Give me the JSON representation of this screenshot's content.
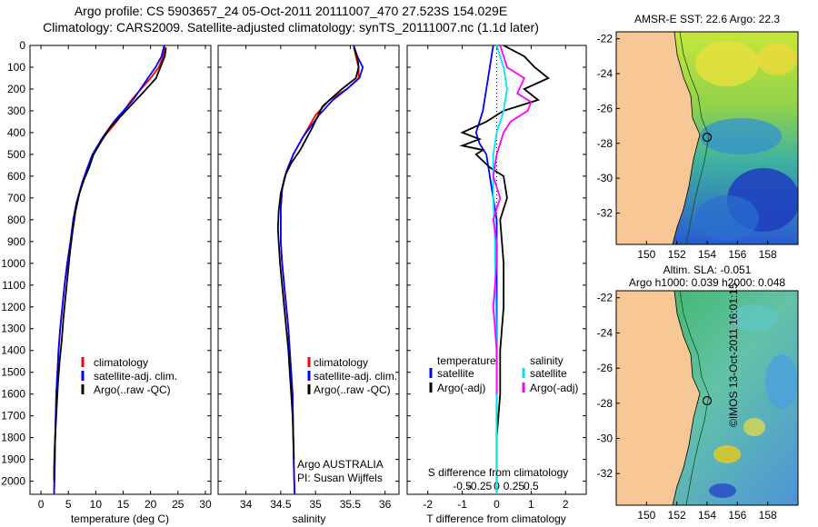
{
  "header": {
    "line1": "Argo profile: CS 5903657_24 05-Oct-2011 20111007_470 27.523S 154.029E",
    "line2": "Climatology: CARS2009. Satellite-adjusted climatology: synTS_20111007.nc (1.1d later)"
  },
  "colors": {
    "climatology": "#ff0000",
    "satellite": "#0000ff",
    "argo": "#000000",
    "temperature_diff_satellite": "#0000ff",
    "temperature_diff_argo": "#000000",
    "salinity_diff_satellite": "#00e5ee",
    "salinity_diff_argo": "#ff00ff",
    "land": "#f7c896"
  },
  "chart_data": [
    {
      "id": "temperature",
      "type": "line",
      "xlabel": "temperature (deg C)",
      "ylabel": "",
      "xlim": [
        -2,
        31
      ],
      "ylim": [
        2060,
        0
      ],
      "xticks": [
        "0",
        "5",
        "10",
        "15",
        "20",
        "25",
        "30"
      ],
      "yticks": [
        "0",
        "100",
        "200",
        "300",
        "400",
        "500",
        "600",
        "700",
        "800",
        "900",
        "1000",
        "1100",
        "1200",
        "1300",
        "1400",
        "1500",
        "1600",
        "1700",
        "1800",
        "1900",
        "2000"
      ],
      "legend": [
        {
          "label": "climatology",
          "color": "#ff0000"
        },
        {
          "label": "satellite-adj. clim.",
          "color": "#0000ff"
        },
        {
          "label": "Argo(..raw -QC)",
          "color": "#000000"
        }
      ],
      "series": [
        {
          "name": "climatology",
          "color": "#ff0000",
          "x": [
            22.6,
            22.3,
            21.5,
            20.0,
            16.5,
            13.8,
            11.5,
            9.5,
            8.6,
            7.6,
            6.5,
            5.9,
            5.4,
            4.8,
            4.3,
            3.9,
            3.5,
            3.2,
            3.0,
            2.8,
            2.6,
            2.5,
            2.4
          ],
          "y": [
            0,
            50,
            100,
            150,
            250,
            350,
            420,
            500,
            560,
            630,
            720,
            800,
            900,
            1000,
            1100,
            1200,
            1300,
            1400,
            1500,
            1600,
            1800,
            1950,
            2060
          ]
        },
        {
          "name": "satellite-adj. clim.",
          "color": "#0000ff",
          "x": [
            22.5,
            22.0,
            20.9,
            19.5,
            16.8,
            13.3,
            11.3,
            9.4,
            8.5,
            7.5,
            6.5,
            5.9,
            5.4,
            4.8,
            4.3,
            3.9,
            3.5,
            3.2,
            3.0,
            2.8,
            2.6,
            2.5,
            2.4
          ],
          "y": [
            0,
            50,
            100,
            150,
            250,
            350,
            420,
            500,
            560,
            630,
            720,
            800,
            900,
            1000,
            1100,
            1200,
            1300,
            1400,
            1500,
            1600,
            1800,
            1950,
            2060
          ]
        },
        {
          "name": "Argo(..raw -QC)",
          "color": "#000000",
          "x": [
            22.8,
            22.6,
            21.8,
            21.0,
            18.5,
            15.5,
            12.5,
            11.0,
            9.6,
            8.8,
            7.8,
            7.0,
            6.3,
            5.8,
            5.3,
            4.9,
            4.5,
            4.1,
            3.8,
            3.4,
            3.1,
            2.9,
            2.7,
            2.5,
            2.4,
            2.4
          ],
          "y": [
            10,
            50,
            100,
            150,
            220,
            300,
            380,
            440,
            500,
            560,
            620,
            680,
            760,
            850,
            950,
            1050,
            1150,
            1250,
            1350,
            1450,
            1550,
            1650,
            1750,
            1850,
            1950,
            2000
          ]
        }
      ]
    },
    {
      "id": "salinity",
      "type": "line",
      "xlabel": "salinity",
      "xlim": [
        33.6,
        36.2
      ],
      "ylim": [
        2060,
        0
      ],
      "xticks": [
        "34",
        "34.5",
        "35",
        "35.5",
        "36"
      ],
      "legend": [
        {
          "label": "climatology",
          "color": "#ff0000"
        },
        {
          "label": "satellite-adj. clim.",
          "color": "#0000ff"
        },
        {
          "label": "Argo(..raw -QC)",
          "color": "#000000"
        }
      ],
      "annotation": {
        "line1": "Argo AUSTRALIA",
        "line2": "PI: Susan Wijffels"
      },
      "series": [
        {
          "name": "climatology",
          "color": "#ff0000",
          "x": [
            35.55,
            35.58,
            35.62,
            35.62,
            35.45,
            35.2,
            35.0,
            34.82,
            34.68,
            34.58,
            34.52,
            34.5,
            34.5,
            34.5,
            34.52,
            34.55,
            34.58,
            34.61,
            34.63,
            34.65,
            34.67,
            34.68,
            34.69,
            34.7
          ],
          "y": [
            0,
            50,
            100,
            150,
            200,
            250,
            320,
            420,
            500,
            580,
            660,
            750,
            830,
            900,
            1000,
            1100,
            1200,
            1300,
            1400,
            1500,
            1600,
            1800,
            1950,
            2060
          ]
        },
        {
          "name": "satellite-adj. clim.",
          "color": "#0000ff",
          "x": [
            35.55,
            35.6,
            35.68,
            35.63,
            35.45,
            35.25,
            35.05,
            34.82,
            34.68,
            34.58,
            34.52,
            34.5,
            34.5,
            34.5,
            34.52,
            34.55,
            34.58,
            34.61,
            34.63,
            34.65,
            34.67,
            34.68,
            34.69,
            34.7
          ],
          "y": [
            0,
            50,
            100,
            150,
            200,
            250,
            320,
            420,
            500,
            580,
            660,
            750,
            830,
            900,
            1000,
            1100,
            1200,
            1300,
            1400,
            1500,
            1600,
            1800,
            1950,
            2060
          ]
        },
        {
          "name": "Argo(..raw -QC)",
          "color": "#000000",
          "x": [
            35.55,
            35.6,
            35.62,
            35.58,
            35.38,
            35.1,
            34.95,
            34.78,
            34.65,
            34.56,
            34.5,
            34.47,
            34.46,
            34.47,
            34.49,
            34.52,
            34.55,
            34.58,
            34.61,
            34.63,
            34.65,
            34.67,
            34.68,
            34.69
          ],
          "y": [
            10,
            50,
            100,
            150,
            200,
            280,
            380,
            480,
            540,
            600,
            680,
            760,
            840,
            900,
            1000,
            1100,
            1200,
            1300,
            1400,
            1500,
            1600,
            1700,
            1800,
            1900
          ]
        }
      ]
    },
    {
      "id": "differences",
      "type": "line",
      "xlabel": "T difference from climatology",
      "top_xlabel": "S difference from climatology",
      "xlim": [
        -2.6,
        2.6
      ],
      "ylim": [
        2060,
        0
      ],
      "xticks": [
        "-2",
        "-1",
        "0",
        "1",
        "2"
      ],
      "top_xticks": [
        "-0.5",
        "-0.25",
        "0",
        "0.25",
        "0.5"
      ],
      "legend_temperature": {
        "title": "temperature",
        "items": [
          {
            "label": "satellite",
            "color": "#0000ff"
          },
          {
            "label": "Argo(-adj)",
            "color": "#000000"
          }
        ]
      },
      "legend_salinity": {
        "title": "salinity",
        "items": [
          {
            "label": "satellite",
            "color": "#00e5ee"
          },
          {
            "label": "Argo(-adj)",
            "color": "#ff00ff"
          }
        ]
      },
      "series": [
        {
          "name": "temperature satellite",
          "color": "#0000ff",
          "x": [
            -0.1,
            -0.2,
            -0.3,
            -0.4,
            -0.6,
            -0.5,
            -0.3,
            -0.2,
            -0.1,
            0.0,
            0.0,
            0.0,
            0.0
          ],
          "y": [
            0,
            100,
            200,
            300,
            400,
            450,
            500,
            600,
            700,
            800,
            1000,
            1500,
            2060
          ]
        },
        {
          "name": "temperature Argo(-adj)",
          "color": "#000000",
          "x": [
            0.2,
            0.8,
            1.1,
            1.5,
            0.8,
            1.2,
            0.2,
            -0.3,
            -1.0,
            -0.5,
            -1.0,
            -0.4,
            -0.6,
            -0.2,
            0.2,
            0.3,
            0.1,
            0.2,
            0.2,
            0.1,
            0.1,
            0.1,
            0.0,
            0.0,
            0.0
          ],
          "y": [
            0,
            50,
            100,
            150,
            200,
            250,
            300,
            350,
            400,
            430,
            460,
            480,
            500,
            560,
            600,
            700,
            800,
            1000,
            1200,
            1400,
            1500,
            1600,
            1800,
            1950,
            2000
          ]
        },
        {
          "name": "salinity satellite",
          "color": "#00e5ee",
          "x": [
            0.0,
            0.2,
            0.3,
            0.2,
            0.0,
            -0.1,
            -0.1,
            -0.05,
            0.0,
            0.0
          ],
          "y": [
            0,
            100,
            200,
            300,
            400,
            500,
            700,
            900,
            1500,
            2060
          ]
        },
        {
          "name": "salinity Argo(-adj)",
          "color": "#ff00ff",
          "x": [
            0.1,
            0.3,
            0.8,
            0.6,
            1.0,
            0.9,
            0.4,
            0.2,
            0.0,
            -0.1,
            0.1,
            -0.1,
            0.0,
            0.0,
            -0.1,
            0.0,
            0.0
          ],
          "y": [
            0,
            100,
            150,
            220,
            260,
            300,
            350,
            400,
            500,
            600,
            700,
            800,
            900,
            1000,
            1200,
            1400,
            1600
          ]
        }
      ]
    },
    {
      "id": "sst-map",
      "type": "heatmap",
      "title": "AMSR-E SST: 22.6 Argo: 22.3",
      "xticks": [
        "150",
        "152",
        "154",
        "156",
        "158"
      ],
      "yticks": [
        "-22",
        "-24",
        "-26",
        "-28",
        "-30",
        "-32"
      ],
      "xlim": [
        148.0,
        160.0
      ],
      "ylim": [
        -33.8,
        -21.6
      ],
      "argo_position": {
        "lon": 154.029,
        "lat": -27.523
      }
    },
    {
      "id": "sla-map",
      "type": "heatmap",
      "title_line1": "Altim. SLA: -0.051",
      "title_line2": "Argo h1000: 0.039 h2000: 0.048",
      "xticks": [
        "150",
        "152",
        "154",
        "156",
        "158"
      ],
      "yticks": [
        "-22",
        "-24",
        "-26",
        "-28",
        "-30",
        "-32"
      ],
      "xlim": [
        148.0,
        160.0
      ],
      "ylim": [
        -33.8,
        -21.6
      ],
      "argo_position": {
        "lon": 154.029,
        "lat": -27.523
      }
    }
  ],
  "footer": {
    "credit": "©IMOS 13-Oct-2011 16:01:15"
  }
}
